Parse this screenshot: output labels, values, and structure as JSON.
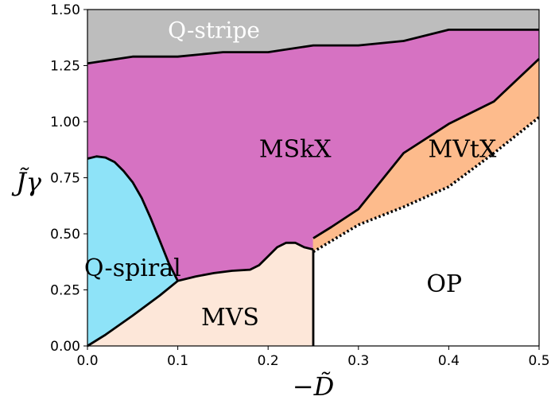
{
  "chart_data": {
    "type": "area",
    "xlabel": "−D̃",
    "ylabel": "J̃γ",
    "xlim": [
      0,
      0.5
    ],
    "ylim": [
      0,
      1.5
    ],
    "grid": false,
    "x_ticks": [
      "0.0",
      "0.1",
      "0.2",
      "0.3",
      "0.4",
      "0.5"
    ],
    "y_ticks": [
      "0.00",
      "0.25",
      "0.50",
      "0.75",
      "1.00",
      "1.25",
      "1.50"
    ],
    "colors": {
      "qstripe": "#bdbdbd",
      "mskx": "#d672c2",
      "mvtx": "#fdbb8c",
      "mvs": "#fde7d9",
      "qspiral": "#8ee3f8",
      "op": "#ffffff"
    },
    "regions": [
      {
        "name": "Q-stripe",
        "label": "Q-stripe",
        "color_key": "qstripe",
        "label_color": "#ffffff",
        "label_pos": [
          0.14,
          1.4
        ],
        "polygon": [
          [
            0,
            1.26
          ],
          [
            0.05,
            1.29
          ],
          [
            0.1,
            1.29
          ],
          [
            0.15,
            1.31
          ],
          [
            0.2,
            1.31
          ],
          [
            0.25,
            1.34
          ],
          [
            0.3,
            1.34
          ],
          [
            0.35,
            1.36
          ],
          [
            0.4,
            1.41
          ],
          [
            0.5,
            1.41
          ],
          [
            0.5,
            1.5
          ],
          [
            0,
            1.5
          ]
        ]
      },
      {
        "name": "MSkX",
        "label": "MSkX",
        "color_key": "mskx",
        "label_color": "#000000",
        "label_pos": [
          0.23,
          0.87
        ],
        "polygon": [
          [
            0,
            1.26
          ],
          [
            0.05,
            1.29
          ],
          [
            0.1,
            1.29
          ],
          [
            0.15,
            1.31
          ],
          [
            0.2,
            1.31
          ],
          [
            0.25,
            1.34
          ],
          [
            0.3,
            1.34
          ],
          [
            0.35,
            1.36
          ],
          [
            0.4,
            1.41
          ],
          [
            0.5,
            1.41
          ],
          [
            0.5,
            1.28
          ],
          [
            0.45,
            1.09
          ],
          [
            0.4,
            0.99
          ],
          [
            0.35,
            0.86
          ],
          [
            0.3,
            0.61
          ],
          [
            0.27,
            0.53
          ],
          [
            0.25,
            0.48
          ],
          [
            0.25,
            0.43
          ],
          [
            0.24,
            0.44
          ],
          [
            0.23,
            0.46
          ],
          [
            0.22,
            0.46
          ],
          [
            0.21,
            0.44
          ],
          [
            0.2,
            0.4
          ],
          [
            0.19,
            0.36
          ],
          [
            0.18,
            0.34
          ],
          [
            0.16,
            0.335
          ],
          [
            0.14,
            0.325
          ],
          [
            0.12,
            0.31
          ],
          [
            0.1,
            0.29
          ],
          [
            0.09,
            0.37
          ],
          [
            0.08,
            0.47
          ],
          [
            0.07,
            0.57
          ],
          [
            0.06,
            0.66
          ],
          [
            0.05,
            0.73
          ],
          [
            0.04,
            0.78
          ],
          [
            0.03,
            0.82
          ],
          [
            0.02,
            0.84
          ],
          [
            0.01,
            0.845
          ],
          [
            0,
            0.835
          ]
        ]
      },
      {
        "name": "MVtX",
        "label": "MVtX",
        "color_key": "mvtx",
        "label_color": "#000000",
        "label_pos": [
          0.415,
          0.87
        ],
        "polygon": [
          [
            0.25,
            0.43
          ],
          [
            0.25,
            0.48
          ],
          [
            0.27,
            0.53
          ],
          [
            0.3,
            0.61
          ],
          [
            0.35,
            0.86
          ],
          [
            0.4,
            0.99
          ],
          [
            0.45,
            1.09
          ],
          [
            0.5,
            1.28
          ],
          [
            0.5,
            1.02
          ],
          [
            0.45,
            0.86
          ],
          [
            0.4,
            0.71
          ],
          [
            0.35,
            0.62
          ],
          [
            0.3,
            0.54
          ],
          [
            0.25,
            0.42
          ]
        ]
      },
      {
        "name": "MVS",
        "label": "MVS",
        "color_key": "mvs",
        "label_color": "#000000",
        "label_pos": [
          0.158,
          0.12
        ],
        "polygon": [
          [
            0,
            0
          ],
          [
            0.02,
            0.05
          ],
          [
            0.05,
            0.135
          ],
          [
            0.08,
            0.225
          ],
          [
            0.1,
            0.29
          ],
          [
            0.12,
            0.31
          ],
          [
            0.14,
            0.325
          ],
          [
            0.16,
            0.335
          ],
          [
            0.18,
            0.34
          ],
          [
            0.19,
            0.36
          ],
          [
            0.2,
            0.4
          ],
          [
            0.21,
            0.44
          ],
          [
            0.22,
            0.46
          ],
          [
            0.23,
            0.46
          ],
          [
            0.24,
            0.44
          ],
          [
            0.25,
            0.43
          ],
          [
            0.25,
            0
          ]
        ]
      },
      {
        "name": "Q-spiral",
        "label": "Q-spiral",
        "color_key": "qspiral",
        "label_color": "#000000",
        "label_pos": [
          0.05,
          0.34
        ],
        "polygon": [
          [
            0,
            0.835
          ],
          [
            0.01,
            0.845
          ],
          [
            0.02,
            0.84
          ],
          [
            0.03,
            0.82
          ],
          [
            0.04,
            0.78
          ],
          [
            0.05,
            0.73
          ],
          [
            0.06,
            0.66
          ],
          [
            0.07,
            0.57
          ],
          [
            0.08,
            0.47
          ],
          [
            0.09,
            0.37
          ],
          [
            0.1,
            0.29
          ],
          [
            0.08,
            0.225
          ],
          [
            0.05,
            0.135
          ],
          [
            0.02,
            0.05
          ],
          [
            0,
            0
          ]
        ]
      },
      {
        "name": "OP",
        "label": "OP",
        "color_key": "op",
        "label_color": "#000000",
        "label_pos": [
          0.395,
          0.27
        ],
        "polygon": [
          [
            0.25,
            0
          ],
          [
            0.5,
            0
          ],
          [
            0.5,
            1.02
          ],
          [
            0.45,
            0.86
          ],
          [
            0.4,
            0.71
          ],
          [
            0.35,
            0.62
          ],
          [
            0.3,
            0.54
          ],
          [
            0.25,
            0.42
          ]
        ]
      }
    ],
    "boundaries": [
      {
        "name": "qstripe-boundary",
        "style": "solid",
        "points": [
          [
            0,
            1.26
          ],
          [
            0.05,
            1.29
          ],
          [
            0.1,
            1.29
          ],
          [
            0.15,
            1.31
          ],
          [
            0.2,
            1.31
          ],
          [
            0.25,
            1.34
          ],
          [
            0.3,
            1.34
          ],
          [
            0.35,
            1.36
          ],
          [
            0.4,
            1.41
          ],
          [
            0.5,
            1.41
          ]
        ]
      },
      {
        "name": "mskx-lower-boundary",
        "style": "solid",
        "points": [
          [
            0,
            0.835
          ],
          [
            0.01,
            0.845
          ],
          [
            0.02,
            0.84
          ],
          [
            0.03,
            0.82
          ],
          [
            0.04,
            0.78
          ],
          [
            0.05,
            0.73
          ],
          [
            0.06,
            0.66
          ],
          [
            0.07,
            0.57
          ],
          [
            0.08,
            0.47
          ],
          [
            0.09,
            0.37
          ],
          [
            0.1,
            0.29
          ],
          [
            0.12,
            0.31
          ],
          [
            0.14,
            0.325
          ],
          [
            0.16,
            0.335
          ],
          [
            0.18,
            0.34
          ],
          [
            0.19,
            0.36
          ],
          [
            0.2,
            0.4
          ],
          [
            0.21,
            0.44
          ],
          [
            0.22,
            0.46
          ],
          [
            0.23,
            0.46
          ],
          [
            0.24,
            0.44
          ],
          [
            0.25,
            0.43
          ]
        ]
      },
      {
        "name": "mskx-mvtx-boundary",
        "style": "solid",
        "points": [
          [
            0.25,
            0.48
          ],
          [
            0.27,
            0.53
          ],
          [
            0.3,
            0.61
          ],
          [
            0.35,
            0.86
          ],
          [
            0.4,
            0.99
          ],
          [
            0.45,
            1.09
          ],
          [
            0.5,
            1.28
          ]
        ]
      },
      {
        "name": "qspiral-mvs-boundary",
        "style": "solid",
        "points": [
          [
            0,
            0
          ],
          [
            0.02,
            0.05
          ],
          [
            0.05,
            0.135
          ],
          [
            0.08,
            0.225
          ],
          [
            0.1,
            0.29
          ]
        ]
      },
      {
        "name": "mvs-op-boundary",
        "style": "solid",
        "points": [
          [
            0.25,
            0
          ],
          [
            0.25,
            0.43
          ]
        ]
      },
      {
        "name": "mvtx-op-boundary",
        "style": "dotted",
        "points": [
          [
            0.25,
            0.42
          ],
          [
            0.3,
            0.54
          ],
          [
            0.35,
            0.62
          ],
          [
            0.4,
            0.71
          ],
          [
            0.45,
            0.86
          ],
          [
            0.5,
            1.02
          ]
        ]
      }
    ]
  }
}
